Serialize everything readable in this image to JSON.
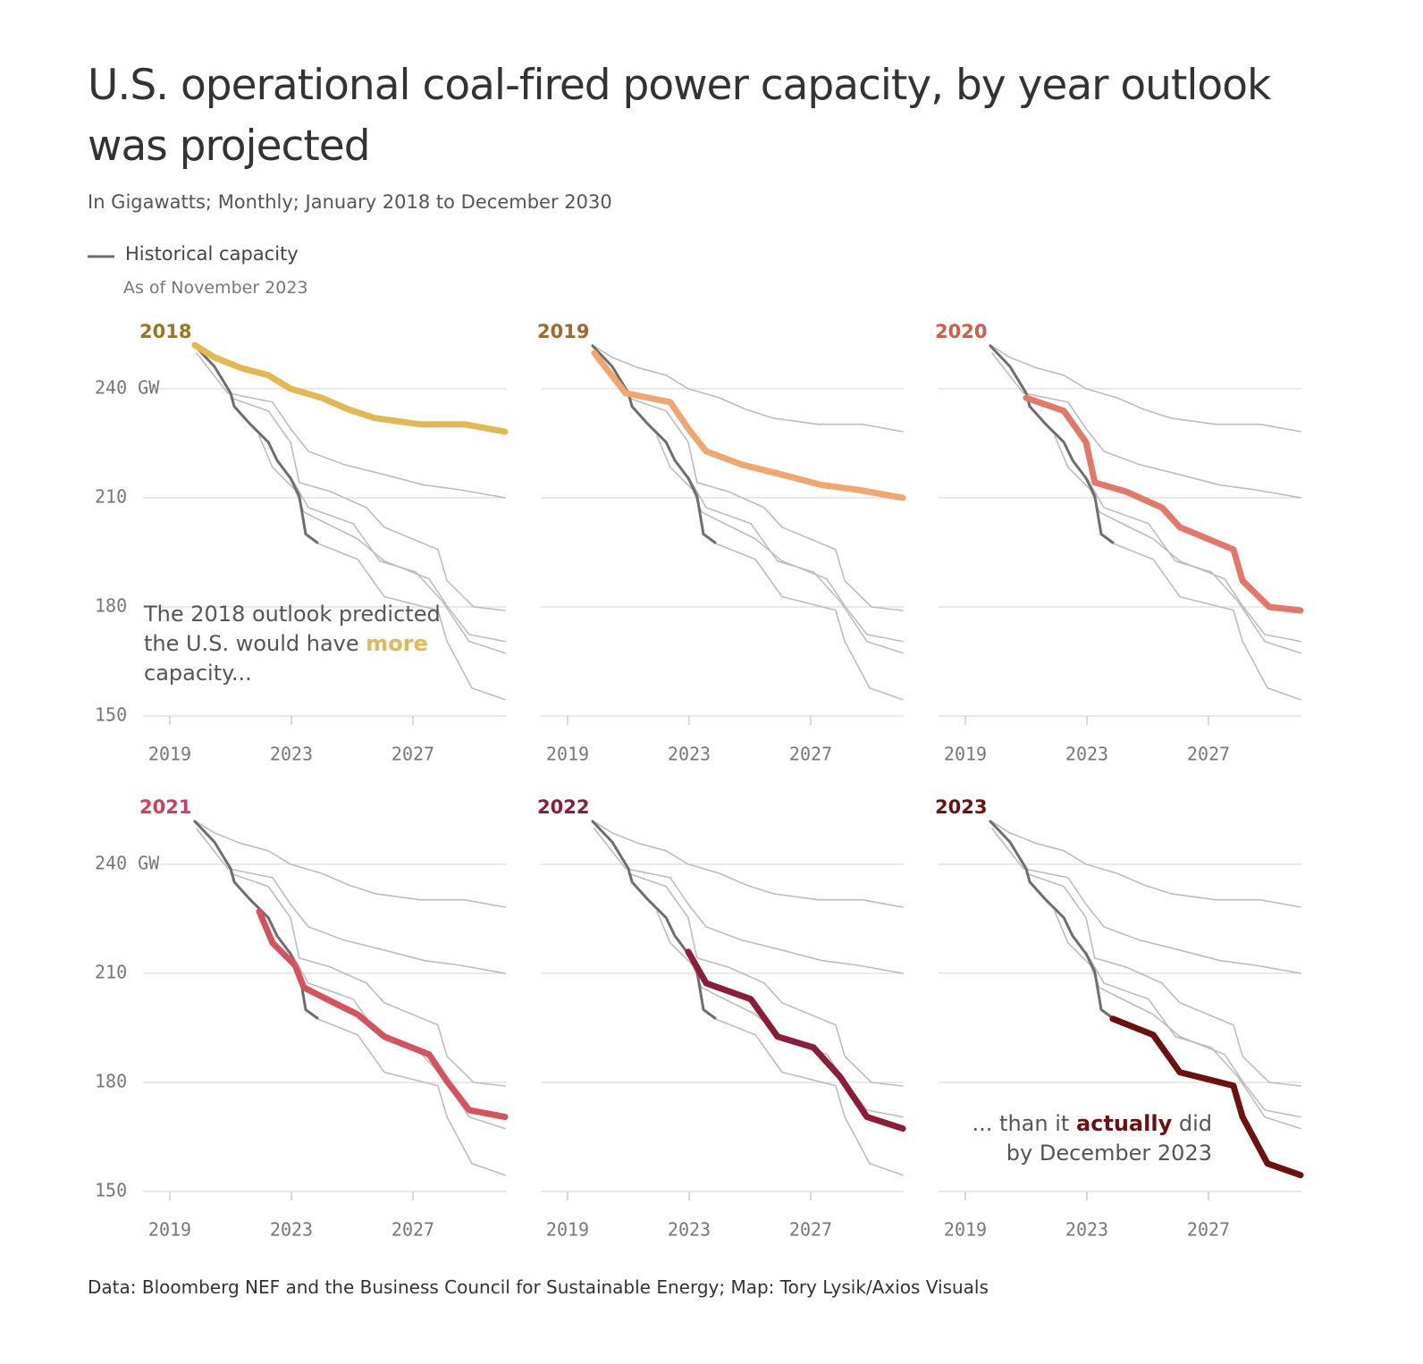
{
  "chart_data": {
    "type": "line",
    "title": "U.S. operational coal-fired power capacity, by year outlook was projected",
    "subtitle": "In Gigawatts; Monthly; January 2018 to December 2030",
    "source": "Data: Bloomberg NEF and the Business Council for Sustainable Energy; Map: Tory Lysik/Axios Visuals",
    "xlim": [
      2018,
      2030
    ],
    "xticks": [
      2019,
      2023,
      2027
    ],
    "ylim": [
      150,
      253
    ],
    "yticks": [
      150,
      180,
      210,
      {
        "value": 240,
        "label": "240 GW"
      }
    ],
    "grid": true,
    "historical": {
      "name": "Historical capacity",
      "note": "As of November 2023",
      "color": "#6e6e6e",
      "x": [
        2019.82,
        2020.47,
        2021.0,
        2021.12,
        2021.65,
        2022.24,
        2022.53,
        2022.97,
        2023.26,
        2023.47,
        2023.85
      ],
      "values": [
        251.8,
        246.1,
        238.8,
        235.1,
        230.2,
        225.3,
        220.3,
        215.4,
        210.5,
        200.0,
        197.7
      ]
    },
    "series": [
      {
        "name": "2018",
        "color": "#e2b852",
        "label_color": "#9b7625",
        "x": [
          2019.82,
          2020.47,
          2021.35,
          2022.24,
          2022.97,
          2024.0,
          2024.88,
          2025.76,
          2027.24,
          2028.7,
          2030.03
        ],
        "values": [
          252.0,
          248.6,
          245.7,
          243.7,
          240.0,
          237.5,
          234.3,
          231.9,
          230.2,
          230.2,
          228.2
        ],
        "annotation": {
          "before": "The 2018 outlook predicted the U.S. would have",
          "emphasis": "more",
          "after": "capacity..."
        }
      },
      {
        "name": "2019",
        "color": "#f0a66e",
        "label_color": "#a0692f",
        "x": [
          2019.88,
          2020.91,
          2022.38,
          2022.97,
          2023.56,
          2024.74,
          2025.91,
          2027.38,
          2028.56,
          2030.03
        ],
        "values": [
          249.8,
          238.8,
          236.3,
          229.0,
          222.8,
          219.1,
          216.7,
          213.5,
          212.2,
          210.0
        ]
      },
      {
        "name": "2020",
        "color": "#e2776a",
        "label_color": "#d65a4a",
        "x": [
          2021.0,
          2022.24,
          2022.97,
          2023.26,
          2024.29,
          2025.47,
          2026.06,
          2027.82,
          2028.12,
          2029.0,
          2030.03
        ],
        "values": [
          237.5,
          233.9,
          225.3,
          214.2,
          211.7,
          207.3,
          201.9,
          195.8,
          187.2,
          180.0,
          179.0
        ]
      },
      {
        "name": "2021",
        "color": "#d5535f",
        "label_color": "#d0405a",
        "x": [
          2021.94,
          2022.38,
          2023.12,
          2023.41,
          2024.0,
          2025.18,
          2026.06,
          2027.53,
          2028.12,
          2028.85,
          2030.03
        ],
        "values": [
          227.0,
          218.4,
          212.2,
          206.1,
          203.6,
          198.7,
          192.6,
          187.7,
          180.3,
          172.4,
          170.5
        ]
      },
      {
        "name": "2022",
        "color": "#8c1c3a",
        "label_color": "#8c1c3a",
        "x": [
          2022.97,
          2023.56,
          2025.03,
          2025.91,
          2027.09,
          2027.97,
          2028.85,
          2030.03
        ],
        "values": [
          215.9,
          207.3,
          202.9,
          192.6,
          189.6,
          181.5,
          170.5,
          167.3
        ]
      },
      {
        "name": "2023",
        "color": "#6e1010",
        "label_color": "#6e1010",
        "x": [
          2023.85,
          2025.18,
          2026.06,
          2027.82,
          2028.12,
          2028.94,
          2030.03
        ],
        "values": [
          197.5,
          193.1,
          182.8,
          179.1,
          170.5,
          157.7,
          154.5
        ],
        "annotation": {
          "before": "... than it",
          "emphasis": "actually",
          "after": "did by December 2023"
        }
      }
    ]
  }
}
